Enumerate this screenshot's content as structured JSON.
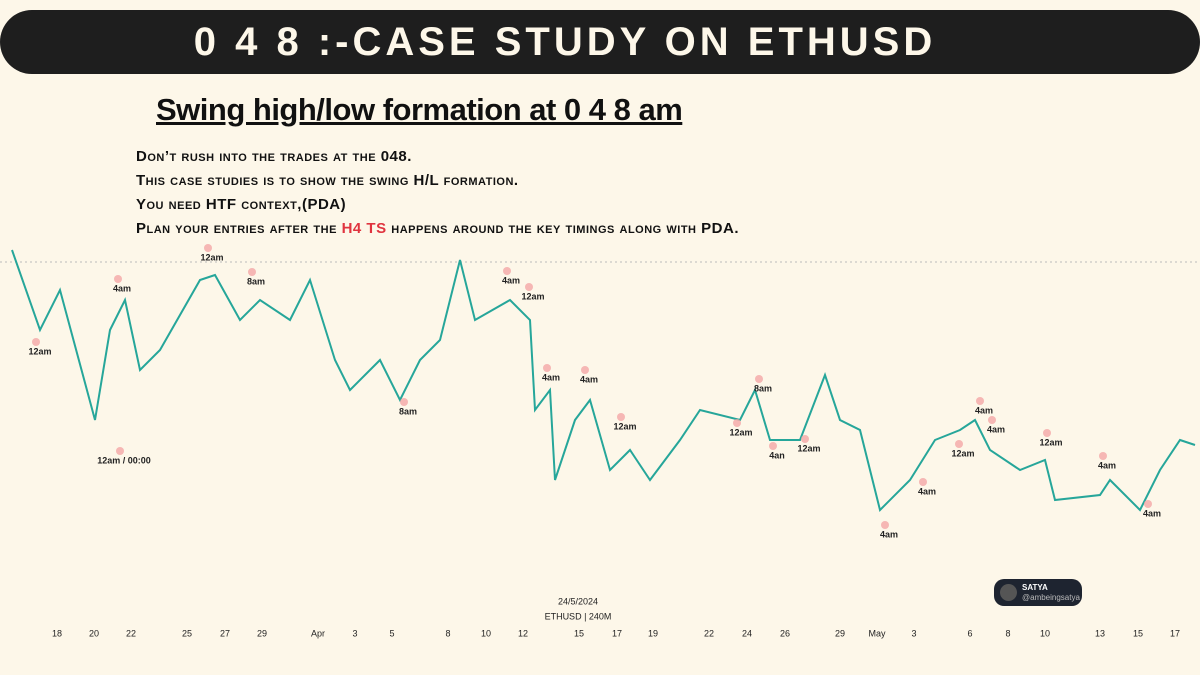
{
  "header": {
    "title": "0 4 8 :-CASE STUDY ON ETHUSD"
  },
  "heading": "Swing high/low formation at 0 4 8 am",
  "notes": [
    "Don’t rush into the trades at the 048.",
    "This case studies is to show the swing H/L formation.",
    "You need HTF context,(PDA)"
  ],
  "plan_note": {
    "before": "Plan your entries after the ",
    "highlight": "H4 TS",
    "after": " happens around the key timings along with PDA."
  },
  "annotations": [
    "12am",
    "4am",
    "12am",
    "8am",
    "12am / 00:00",
    "8am",
    "4am",
    "12am",
    "4am",
    "4am",
    "12am",
    "8am",
    "12am",
    "4an",
    "12am",
    "4am",
    "4am",
    "12am",
    "12am",
    "4am",
    "4am",
    "4am",
    "4am"
  ],
  "x_labels": [
    "18",
    "20",
    "22",
    "25",
    "27",
    "29",
    "Apr",
    "3",
    "5",
    "8",
    "10",
    "12",
    "15",
    "17",
    "19",
    "22",
    "24",
    "26",
    "29",
    "May",
    "3",
    "6",
    "8",
    "10",
    "13",
    "15",
    "17"
  ],
  "chart_date": "24/5/2024",
  "chart_symbol": "ETHUSD | 240M",
  "watermark": {
    "name": "SATYA",
    "handle": "@ambeingsatya"
  }
}
